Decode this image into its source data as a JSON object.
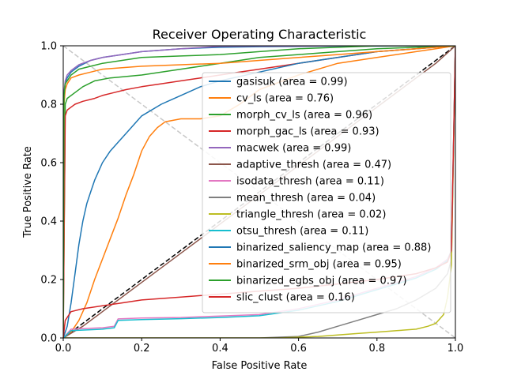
{
  "chart_data": {
    "type": "line",
    "title": "Receiver Operating Characteristic",
    "xlabel": "False Positive Rate",
    "ylabel": "True Positive Rate",
    "xlim": [
      0,
      1
    ],
    "ylim": [
      0,
      1
    ],
    "xticks": [
      "0.0",
      "0.2",
      "0.4",
      "0.6",
      "0.8",
      "1.0"
    ],
    "yticks": [
      "0.0",
      "0.2",
      "0.4",
      "0.6",
      "0.8",
      "1.0"
    ],
    "grid": false,
    "legend_position": "center-right",
    "reference_lines": [
      {
        "style": "dashed",
        "color": "#000000",
        "x": [
          0,
          1
        ],
        "y": [
          0,
          1
        ]
      },
      {
        "style": "dashed",
        "color": "#c8c8c8",
        "x": [
          0,
          1
        ],
        "y": [
          1,
          0
        ]
      }
    ],
    "series": [
      {
        "name": "gasisuk (area = 0.99)",
        "color": "#1f77b4",
        "x": [
          0,
          0.001,
          0.005,
          0.01,
          0.02,
          0.04,
          0.07,
          0.1,
          0.15,
          0.2,
          0.3,
          0.4,
          0.5,
          0.6,
          0.7,
          0.8,
          0.9,
          1
        ],
        "y": [
          0,
          0.82,
          0.87,
          0.89,
          0.91,
          0.93,
          0.95,
          0.96,
          0.97,
          0.98,
          0.99,
          0.995,
          0.997,
          0.998,
          0.999,
          0.999,
          1,
          1
        ]
      },
      {
        "name": "cv_ls (area = 0.76)",
        "color": "#ff7f0e",
        "x": [
          0,
          0.02,
          0.04,
          0.06,
          0.08,
          0.1,
          0.12,
          0.14,
          0.16,
          0.18,
          0.2,
          0.22,
          0.24,
          0.26,
          0.28,
          0.3,
          0.35,
          0.4,
          0.45,
          0.5,
          0.6,
          0.7,
          0.8,
          0.9,
          0.95,
          1
        ],
        "y": [
          0,
          0.02,
          0.06,
          0.12,
          0.2,
          0.27,
          0.34,
          0.41,
          0.49,
          0.56,
          0.64,
          0.69,
          0.72,
          0.74,
          0.745,
          0.75,
          0.75,
          0.76,
          0.8,
          0.85,
          0.9,
          0.94,
          0.96,
          0.98,
          0.99,
          1
        ]
      },
      {
        "name": "morph_cv_ls (area = 0.96)",
        "color": "#2ca02c",
        "x": [
          0,
          0.005,
          0.01,
          0.03,
          0.05,
          0.08,
          0.12,
          0.2,
          0.3,
          0.4,
          0.5,
          0.6,
          0.7,
          0.8,
          0.9,
          1
        ],
        "y": [
          0,
          0.8,
          0.82,
          0.84,
          0.86,
          0.88,
          0.89,
          0.9,
          0.92,
          0.94,
          0.96,
          0.97,
          0.98,
          0.99,
          0.995,
          1
        ]
      },
      {
        "name": "morph_gac_ls (area = 0.93)",
        "color": "#d62728",
        "x": [
          0,
          0.005,
          0.01,
          0.02,
          0.03,
          0.05,
          0.08,
          0.1,
          0.13,
          0.16,
          0.2,
          0.25,
          0.3,
          0.35,
          0.4,
          0.45,
          0.5,
          0.6,
          0.7,
          0.8,
          0.9,
          1
        ],
        "y": [
          0,
          0.76,
          0.78,
          0.79,
          0.8,
          0.81,
          0.82,
          0.83,
          0.84,
          0.85,
          0.86,
          0.87,
          0.88,
          0.89,
          0.9,
          0.91,
          0.92,
          0.94,
          0.96,
          0.98,
          0.99,
          1
        ]
      },
      {
        "name": "macwek (area = 0.99)",
        "color": "#9467bd",
        "x": [
          0,
          0.001,
          0.005,
          0.01,
          0.02,
          0.04,
          0.07,
          0.1,
          0.15,
          0.2,
          0.3,
          0.4,
          0.5,
          0.6,
          0.7,
          0.8,
          0.9,
          1
        ],
        "y": [
          0,
          0.83,
          0.88,
          0.9,
          0.915,
          0.935,
          0.95,
          0.96,
          0.97,
          0.98,
          0.99,
          0.998,
          0.999,
          0.999,
          1,
          1,
          1,
          1
        ]
      },
      {
        "name": "adaptive_thresh (area = 0.47)",
        "color": "#8c564b",
        "x": [
          0,
          0.05,
          0.1,
          0.2,
          0.3,
          0.4,
          0.5,
          0.6,
          0.7,
          0.8,
          0.9,
          0.95,
          1
        ],
        "y": [
          0,
          0.04,
          0.09,
          0.19,
          0.29,
          0.39,
          0.49,
          0.59,
          0.69,
          0.79,
          0.89,
          0.94,
          1
        ]
      },
      {
        "name": "isodata_thresh (area = 0.11)",
        "color": "#e377c2",
        "x": [
          0,
          0.02,
          0.1,
          0.13,
          0.14,
          0.2,
          0.3,
          0.4,
          0.5,
          0.6,
          0.7,
          0.8,
          0.9,
          0.95,
          0.98,
          0.99,
          1
        ],
        "y": [
          0,
          0.03,
          0.035,
          0.04,
          0.065,
          0.068,
          0.07,
          0.075,
          0.08,
          0.1,
          0.13,
          0.17,
          0.21,
          0.24,
          0.27,
          0.3,
          1
        ]
      },
      {
        "name": "mean_thresh (area = 0.04)",
        "color": "#7f7f7f",
        "x": [
          0,
          0.5,
          0.6,
          0.65,
          0.7,
          0.75,
          0.8,
          0.85,
          0.9,
          0.95,
          0.98,
          0.99,
          1
        ],
        "y": [
          0,
          0,
          0.005,
          0.02,
          0.04,
          0.06,
          0.08,
          0.1,
          0.13,
          0.17,
          0.22,
          0.27,
          1
        ]
      },
      {
        "name": "triangle_thresh (area = 0.02)",
        "color": "#bcbd22",
        "x": [
          0,
          0.55,
          0.65,
          0.75,
          0.8,
          0.85,
          0.9,
          0.93,
          0.95,
          0.97,
          0.98,
          0.99,
          1
        ],
        "y": [
          0,
          0,
          0.005,
          0.015,
          0.02,
          0.025,
          0.03,
          0.04,
          0.05,
          0.08,
          0.14,
          0.25,
          1
        ]
      },
      {
        "name": "otsu_thresh (area = 0.11)",
        "color": "#17becf",
        "x": [
          0,
          0.02,
          0.1,
          0.13,
          0.14,
          0.2,
          0.3,
          0.4,
          0.5,
          0.6,
          0.7,
          0.8,
          0.9,
          0.95,
          0.98,
          0.99,
          1
        ],
        "y": [
          0,
          0.025,
          0.03,
          0.035,
          0.06,
          0.063,
          0.066,
          0.07,
          0.076,
          0.095,
          0.125,
          0.165,
          0.205,
          0.235,
          0.265,
          0.3,
          1
        ]
      },
      {
        "name": "binarized_saliency_map (area = 0.88)",
        "color": "#1f77b4",
        "x": [
          0,
          0.01,
          0.02,
          0.03,
          0.04,
          0.05,
          0.06,
          0.07,
          0.08,
          0.1,
          0.12,
          0.14,
          0.16,
          0.18,
          0.2,
          0.25,
          0.3,
          0.35,
          0.4,
          0.5,
          0.6,
          0.7,
          0.8,
          0.9,
          1
        ],
        "y": [
          0,
          0.04,
          0.12,
          0.22,
          0.32,
          0.4,
          0.46,
          0.5,
          0.54,
          0.6,
          0.64,
          0.67,
          0.7,
          0.73,
          0.76,
          0.8,
          0.83,
          0.86,
          0.88,
          0.91,
          0.94,
          0.96,
          0.98,
          0.99,
          1
        ]
      },
      {
        "name": "binarized_srm_obj (area = 0.95)",
        "color": "#ff7f0e",
        "x": [
          0,
          0.002,
          0.005,
          0.01,
          0.02,
          0.04,
          0.07,
          0.1,
          0.15,
          0.2,
          0.3,
          0.4,
          0.5,
          0.6,
          0.7,
          0.8,
          0.9,
          1
        ],
        "y": [
          0,
          0.8,
          0.85,
          0.87,
          0.89,
          0.9,
          0.91,
          0.92,
          0.925,
          0.93,
          0.935,
          0.94,
          0.95,
          0.96,
          0.97,
          0.98,
          0.99,
          1
        ]
      },
      {
        "name": "binarized_egbs_obj (area = 0.97)",
        "color": "#2ca02c",
        "x": [
          0,
          0.002,
          0.005,
          0.01,
          0.02,
          0.04,
          0.07,
          0.1,
          0.15,
          0.2,
          0.3,
          0.4,
          0.5,
          0.6,
          0.7,
          0.8,
          0.9,
          1
        ],
        "y": [
          0,
          0.83,
          0.87,
          0.88,
          0.9,
          0.92,
          0.93,
          0.94,
          0.95,
          0.96,
          0.965,
          0.97,
          0.98,
          0.99,
          0.995,
          1,
          1,
          1
        ]
      },
      {
        "name": "slic_clust (area = 0.16)",
        "color": "#d62728",
        "x": [
          0,
          0.005,
          0.02,
          0.05,
          0.1,
          0.15,
          0.2,
          0.3,
          0.4,
          0.5,
          0.6,
          0.7,
          0.8,
          0.9,
          0.95,
          0.98,
          0.99,
          1
        ],
        "y": [
          0,
          0.06,
          0.09,
          0.1,
          0.11,
          0.12,
          0.13,
          0.14,
          0.15,
          0.16,
          0.17,
          0.185,
          0.2,
          0.22,
          0.24,
          0.26,
          0.3,
          1
        ]
      }
    ]
  }
}
